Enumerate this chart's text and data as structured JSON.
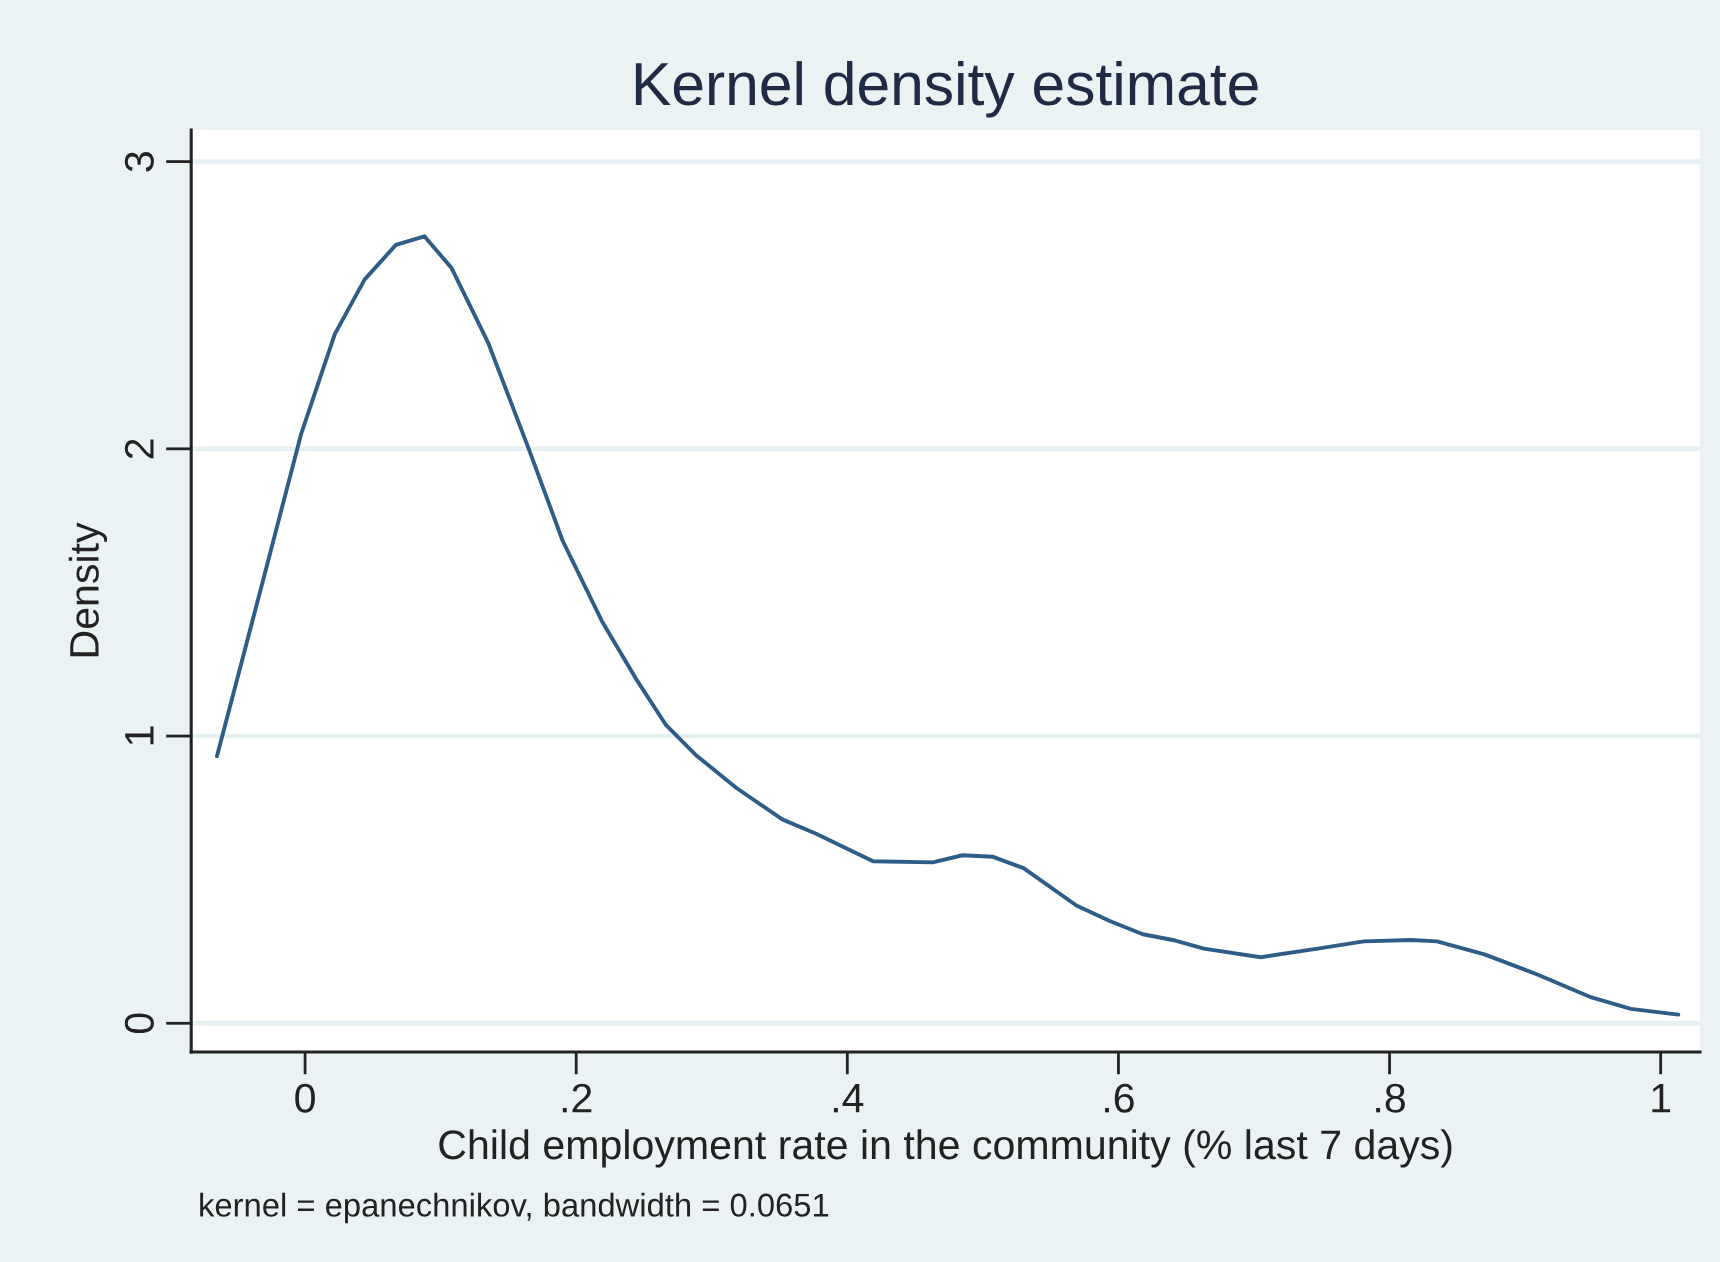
{
  "chart_data": {
    "type": "line",
    "title": "Kernel density estimate",
    "xlabel": "Child employment rate in the community (% last 7 days)",
    "ylabel": "Density",
    "annotations": [
      "kernel = epanechnikov, bandwidth = 0.0651"
    ],
    "x": [
      -0.065,
      -0.03,
      -0.003,
      0.022,
      0.044,
      0.067,
      0.088,
      0.108,
      0.135,
      0.165,
      0.19,
      0.219,
      0.244,
      0.266,
      0.288,
      0.318,
      0.352,
      0.377,
      0.419,
      0.463,
      0.485,
      0.507,
      0.53,
      0.569,
      0.594,
      0.618,
      0.64,
      0.663,
      0.705,
      0.747,
      0.781,
      0.816,
      0.835,
      0.87,
      0.909,
      0.949,
      0.978,
      1.013
    ],
    "series": [
      {
        "color": "#2e5d87",
        "values": [
          0.93,
          1.56,
          2.05,
          2.4,
          2.59,
          2.71,
          2.74,
          2.63,
          2.37,
          2.0,
          1.68,
          1.4,
          1.2,
          1.04,
          0.935,
          0.82,
          0.71,
          0.66,
          0.564,
          0.56,
          0.585,
          0.58,
          0.54,
          0.41,
          0.355,
          0.31,
          0.29,
          0.26,
          0.23,
          0.26,
          0.285,
          0.29,
          0.285,
          0.24,
          0.17,
          0.09,
          0.05,
          0.03
        ]
      }
    ],
    "xlim": [
      -0.084,
      1.029
    ],
    "ylim": [
      -0.1,
      3.11
    ],
    "xticks": [
      0,
      {
        "value": 0.2,
        "label": ".2"
      },
      {
        "value": 0.4,
        "label": ".4"
      },
      {
        "value": 0.6,
        "label": ".6"
      },
      {
        "value": 0.8,
        "label": ".8"
      },
      1
    ],
    "yticks": [
      0,
      1,
      2,
      3
    ],
    "grid": "y",
    "line_style": "solid"
  }
}
